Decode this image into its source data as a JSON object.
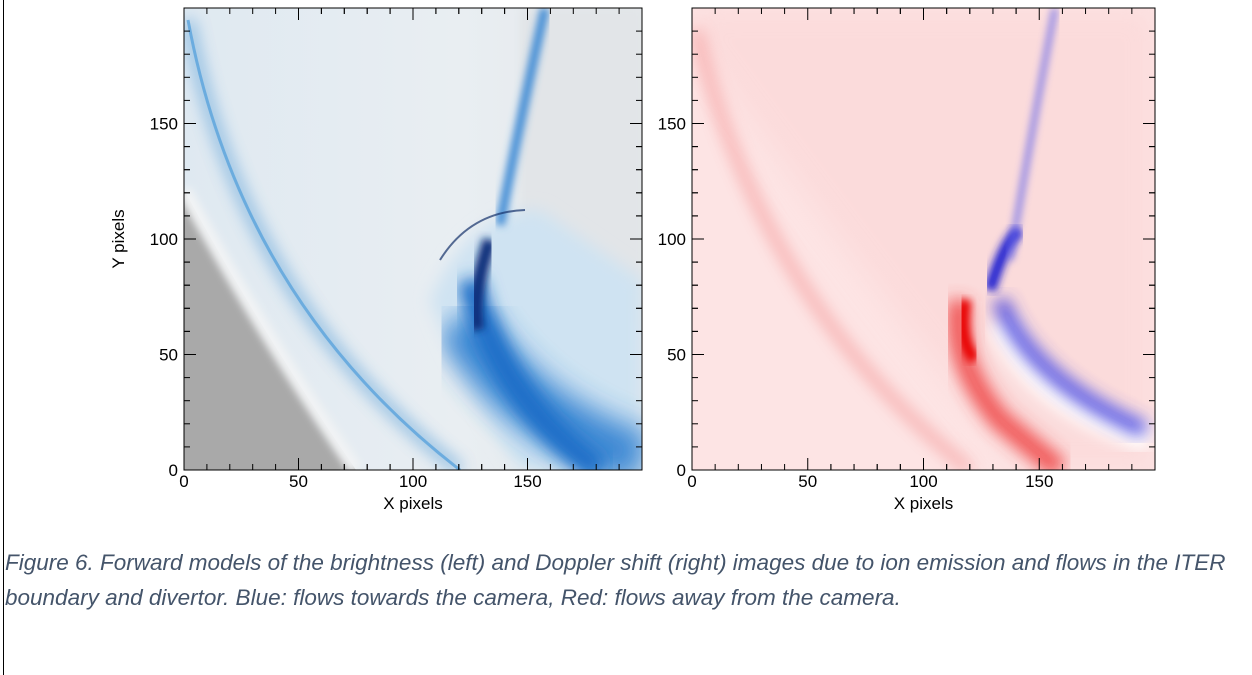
{
  "figure": {
    "panels": [
      {
        "x_label": "X pixels",
        "y_label": "Y pixels",
        "xlim": [
          0,
          200
        ],
        "ylim": [
          0,
          200
        ],
        "xticks": [
          0,
          50,
          100,
          150
        ],
        "yticks": [
          0,
          50,
          100,
          150
        ]
      },
      {
        "x_label": "X pixels",
        "xlim": [
          0,
          200
        ],
        "ylim": [
          0,
          200
        ],
        "xticks": [
          0,
          50,
          100,
          150
        ],
        "yticks": [
          0,
          50,
          100,
          150
        ]
      }
    ],
    "caption": "Figure 6. Forward models of the brightness (left) and Doppler shift (right) images due to ion emission and flows in the ITER boundary and divertor. Blue: flows towards the camera, Red: flows away from the camera."
  }
}
